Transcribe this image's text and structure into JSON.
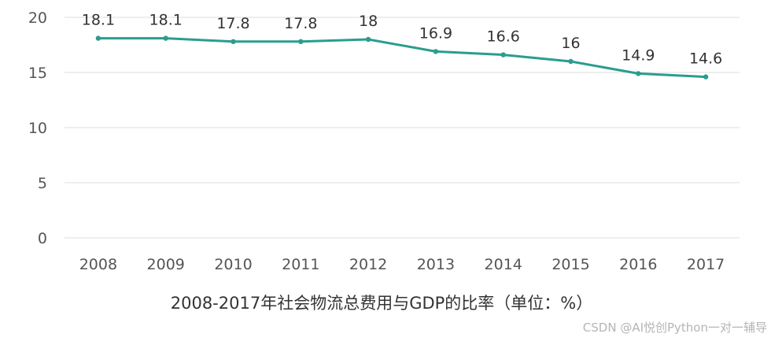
{
  "chart_data": {
    "type": "line",
    "title": "2008-2017年社会物流总费用与GDP的比率（单位：%）",
    "xlabel": "",
    "ylabel": "",
    "categories": [
      "2008",
      "2009",
      "2010",
      "2011",
      "2012",
      "2013",
      "2014",
      "2015",
      "2016",
      "2017"
    ],
    "series": [
      {
        "name": "社会物流总费用与GDP的比率",
        "values": [
          18.1,
          18.1,
          17.8,
          17.8,
          18,
          16.9,
          16.6,
          16,
          14.9,
          14.6
        ],
        "labels": [
          "18.1",
          "18.1",
          "17.8",
          "17.8",
          "18",
          "16.9",
          "16.6",
          "16",
          "14.9",
          "14.6"
        ],
        "color": "#2a9d8f"
      }
    ],
    "ylim": [
      0,
      20
    ],
    "yticks": [
      "0",
      "5",
      "10",
      "15",
      "20"
    ],
    "grid": true,
    "legend": "none"
  },
  "watermark": "CSDN @AI悦创Python一对一辅导"
}
